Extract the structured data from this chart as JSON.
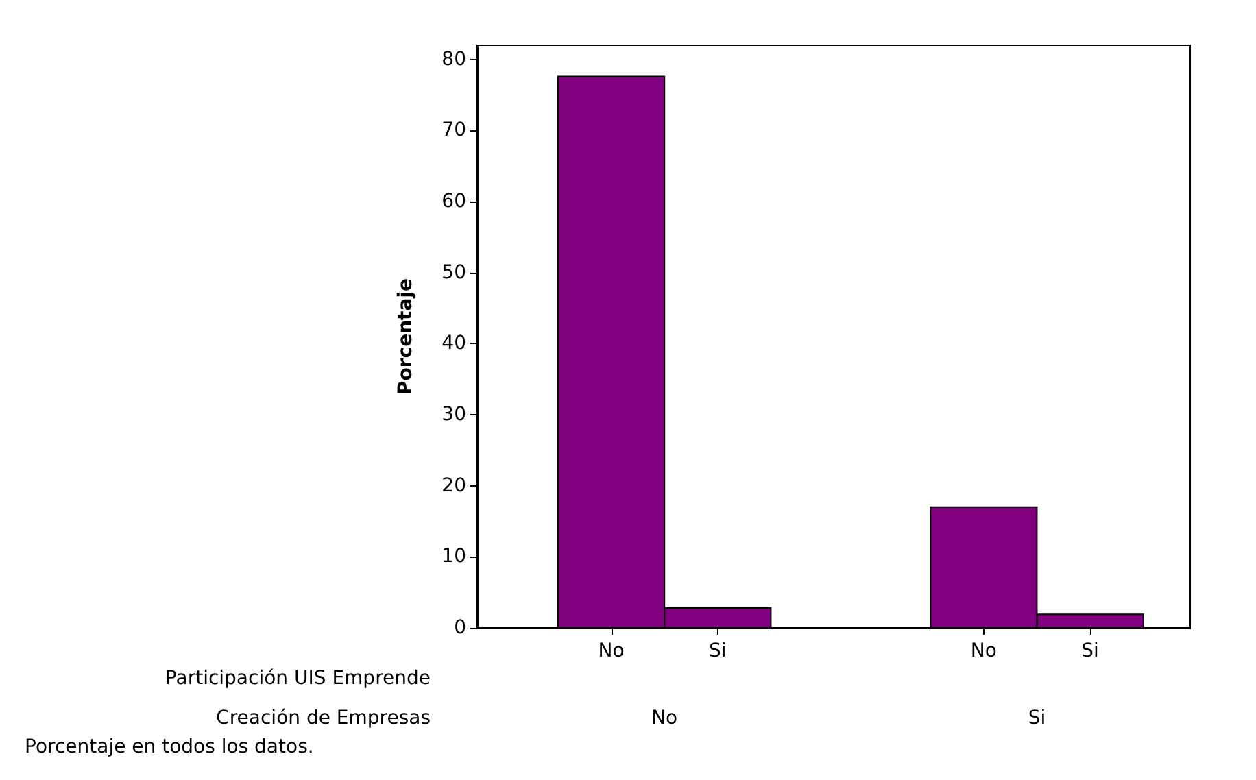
{
  "chart_data": {
    "type": "bar",
    "ylabel": "Porcentaje",
    "xlabel": "Participación UIS Emprende",
    "categories": [
      "No",
      "Si",
      "No",
      "Si"
    ],
    "values": [
      77.6,
      2.8,
      17.0,
      1.9
    ],
    "color": "#800080",
    "ylim": [
      0,
      82
    ],
    "yticks": [
      0,
      10,
      20,
      30,
      40,
      50,
      60,
      70,
      80
    ],
    "grid": false,
    "annotations": [
      "Creación de Empresas",
      "No",
      "Si",
      "Porcentaje en todos los datos."
    ]
  }
}
